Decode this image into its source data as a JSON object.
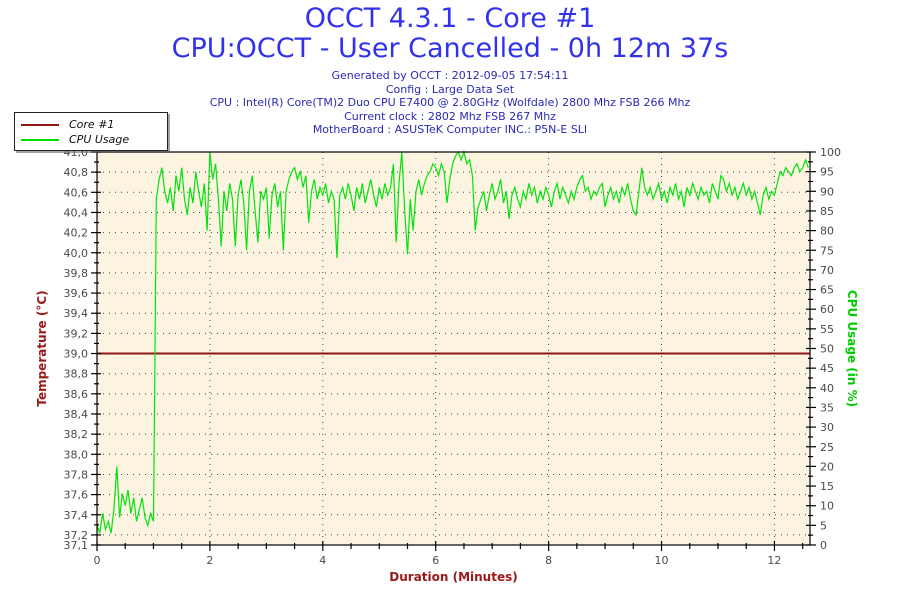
{
  "header": {
    "title": "OCCT 4.3.1 - Core #1",
    "subtitle": "CPU:OCCT - User Cancelled - 0h 12m 37s",
    "info_lines": [
      "Generated by OCCT : 2012-09-05 17:54:11",
      "Config : Large Data Set",
      "CPU : Intel(R) Core(TM)2 Duo CPU E7400 @ 2.80GHz (Wolfdale) 2800 Mhz FSB 266 Mhz",
      "Current clock : 2802 Mhz FSB 267 Mhz",
      "MotherBoard : ASUSTeK Computer INC.: P5N-E SLI"
    ]
  },
  "legend": {
    "items": [
      {
        "label": "Core #1",
        "color": "#8e1616"
      },
      {
        "label": "CPU Usage",
        "color": "#00dd00"
      }
    ]
  },
  "colors": {
    "title_blue": "#3232ee",
    "info_navy": "#2a2ab5",
    "plot_background": "#fcf4e0",
    "grid_dots": "#444444",
    "tick_label": "#4a4a4a",
    "axis_line": "#000000",
    "temp_axis_red": "#9b1818",
    "usage_axis_green": "#00cc00",
    "core_line": "#8e1616",
    "usage_line": "#00e40c"
  },
  "chart_data": {
    "type": "line",
    "x_axis": {
      "label": "Duration (Minutes)",
      "range": [
        0,
        12.63
      ],
      "major_tick_labels": [
        "0",
        "2",
        "4",
        "6",
        "8",
        "10",
        "12"
      ],
      "major_tick_values": [
        0,
        2,
        4,
        6,
        8,
        10,
        12
      ],
      "minor_tick_step": 0.5,
      "grid": "dotted-vertical-at-majors"
    },
    "y_left": {
      "label": "Temperature (°C)",
      "range": [
        37.1,
        41.0
      ],
      "tick_labels": [
        "41,0",
        "40,8",
        "40,6",
        "40,4",
        "40,2",
        "40,0",
        "39,8",
        "39,6",
        "39,4",
        "39,2",
        "39,0",
        "38,8",
        "38,6",
        "38,4",
        "38,2",
        "38,0",
        "37,8",
        "37,6",
        "37,4",
        "37,2",
        "37,1"
      ],
      "tick_values": [
        41.0,
        40.8,
        40.6,
        40.4,
        40.2,
        40.0,
        39.8,
        39.6,
        39.4,
        39.2,
        39.0,
        38.8,
        38.6,
        38.4,
        38.2,
        38.0,
        37.8,
        37.6,
        37.4,
        37.2,
        37.1
      ],
      "minor_tick_step": 0.1,
      "grid": "dotted-horizontal-at-majors"
    },
    "y_right": {
      "label": "CPU Usage (in %)",
      "range": [
        0,
        100
      ],
      "tick_labels": [
        "100",
        "95",
        "90",
        "85",
        "80",
        "75",
        "70",
        "65",
        "60",
        "55",
        "50",
        "45",
        "40",
        "35",
        "30",
        "25",
        "20",
        "15",
        "10",
        "5",
        "0"
      ],
      "tick_values": [
        100,
        95,
        90,
        85,
        80,
        75,
        70,
        65,
        60,
        55,
        50,
        45,
        40,
        35,
        30,
        25,
        20,
        15,
        10,
        5,
        0
      ],
      "minor_tick_step": 2.5
    },
    "series": [
      {
        "name": "Core #1",
        "axis": "left",
        "color": "#8e1616",
        "style": "flat-line",
        "constant_value": 39.0
      },
      {
        "name": "CPU Usage",
        "axis": "right",
        "color": "#00e40c",
        "style": "noisy-line",
        "t_start": 0,
        "t_step": 0.05,
        "values": [
          5,
          3,
          8,
          4,
          6,
          3,
          9,
          20,
          7,
          13,
          10,
          14,
          8,
          12,
          6,
          9,
          12,
          7,
          5,
          8,
          6,
          88,
          93,
          96,
          90,
          87,
          91,
          85,
          94,
          90,
          96,
          88,
          84,
          91,
          87,
          95,
          90,
          86,
          92,
          80,
          100,
          93,
          97,
          88,
          76,
          90,
          85,
          92,
          88,
          76,
          89,
          93,
          87,
          75,
          90,
          94,
          85,
          77,
          90,
          88,
          91,
          78,
          89,
          92,
          86,
          90,
          75,
          90,
          93,
          95,
          96,
          93,
          95,
          91,
          94,
          82,
          90,
          93,
          88,
          91,
          89,
          92,
          87,
          90,
          88,
          73,
          89,
          91,
          88,
          92,
          89,
          85,
          91,
          88,
          92,
          87,
          90,
          93,
          89,
          86,
          91,
          88,
          92,
          89,
          91,
          97,
          77,
          92,
          100,
          85,
          74,
          88,
          80,
          90,
          93,
          89,
          92,
          94,
          95,
          97,
          96,
          94,
          97,
          95,
          87,
          93,
          97,
          99,
          100,
          98,
          100,
          97,
          98,
          94,
          80,
          86,
          88,
          90,
          85,
          89,
          92,
          88,
          90,
          93,
          87,
          90,
          83,
          89,
          91,
          88,
          86,
          90,
          88,
          92,
          89,
          91,
          87,
          90,
          88,
          91,
          89,
          86,
          90,
          92,
          88,
          91,
          89,
          87,
          90,
          88,
          91,
          93,
          94,
          90,
          91,
          88,
          90,
          89,
          91,
          92,
          86,
          89,
          91,
          88,
          90,
          87,
          91,
          89,
          92,
          88,
          85,
          84,
          90,
          96,
          91,
          89,
          91,
          88,
          90,
          92,
          88,
          90,
          87,
          91,
          89,
          92,
          88,
          90,
          86,
          91,
          89,
          92,
          90,
          88,
          91,
          89,
          90,
          87,
          92,
          90,
          88,
          94,
          93,
          90,
          92,
          89,
          91,
          88,
          90,
          92,
          89,
          91,
          88,
          90,
          87,
          84,
          89,
          91,
          88,
          90,
          89,
          92,
          95,
          94,
          96,
          95,
          94,
          96,
          97,
          95,
          96,
          98,
          96
        ]
      }
    ]
  }
}
